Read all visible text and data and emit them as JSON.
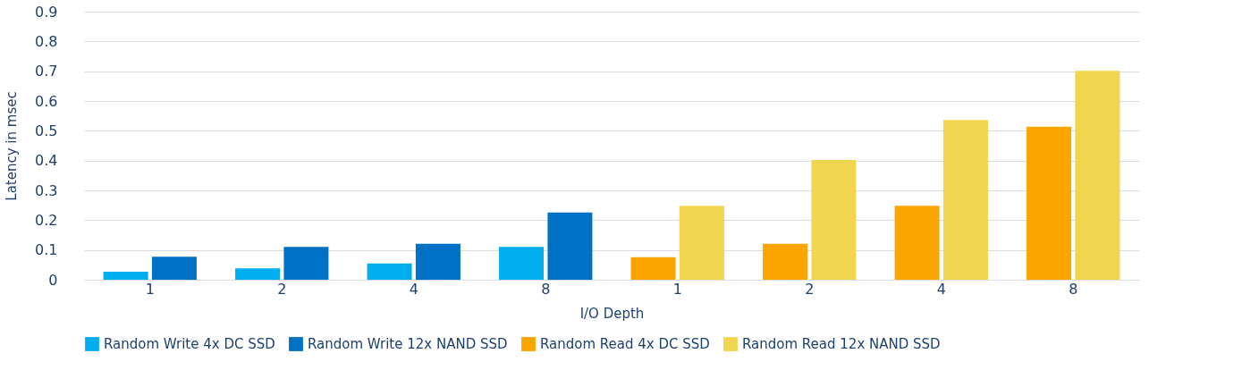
{
  "chart_data": {
    "type": "bar",
    "xlabel": "I/O Depth",
    "ylabel": "Latency in msec",
    "categories": [
      "1",
      "2",
      "4",
      "8",
      "1",
      "2",
      "4",
      "8"
    ],
    "series": [
      {
        "name": "Random Write 4x DC SSD",
        "color": "#00aeef",
        "values": [
          0.027,
          0.038,
          0.055,
          0.11,
          null,
          null,
          null,
          null
        ]
      },
      {
        "name": "Random Write 12x NAND SSD",
        "color": "#0071c5",
        "values": [
          0.077,
          0.11,
          0.121,
          0.226,
          null,
          null,
          null,
          null
        ]
      },
      {
        "name": "Random Read 4x DC SSD",
        "color": "#fca400",
        "values": [
          null,
          null,
          null,
          null,
          0.076,
          0.121,
          0.248,
          0.514
        ]
      },
      {
        "name": "Random Read 12x NAND SSD",
        "color": "#f2d54e",
        "values": [
          null,
          null,
          null,
          null,
          0.248,
          0.402,
          0.536,
          0.701
        ]
      }
    ],
    "ylim": [
      0,
      0.9
    ],
    "yticks": [
      0,
      0.1,
      0.2,
      0.3,
      0.4,
      0.5,
      0.6,
      0.7,
      0.8,
      0.9
    ],
    "grid": "y",
    "legend": "bottom"
  }
}
